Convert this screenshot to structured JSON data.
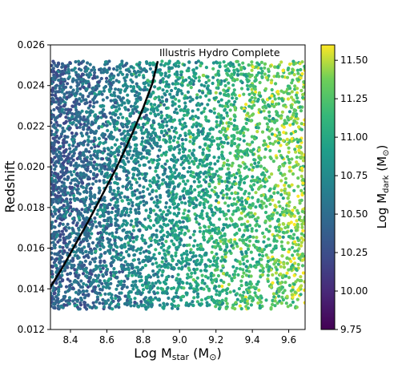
{
  "chart_data": {
    "type": "scatter",
    "xlabel": "Log M",
    "xlabel_sub": "star",
    "xlabel_unit": "(M",
    "xlabel_unit_sub": "⊙",
    "xlabel_close": ")",
    "ylabel": "Redshift",
    "xlim": [
      8.29,
      9.69
    ],
    "ylim": [
      0.012,
      0.026
    ],
    "xticks": [
      "8.4",
      "8.6",
      "8.8",
      "9.0",
      "9.2",
      "9.4",
      "9.6"
    ],
    "yticks": [
      "0.012",
      "0.014",
      "0.016",
      "0.018",
      "0.020",
      "0.022",
      "0.024",
      "0.026"
    ],
    "grid": false,
    "points_summary": {
      "count": 5200,
      "x_range": [
        8.29,
        9.69
      ],
      "z_range": [
        0.013,
        0.0252
      ],
      "color_range": [
        10.2,
        11.6
      ],
      "note_color_vs_x": "color value increases with Log Mstar"
    },
    "completeness_curve": {
      "label": "Illustris Hydro Complete",
      "x": [
        8.29,
        8.35,
        8.4,
        8.45,
        8.5,
        8.55,
        8.6,
        8.65,
        8.7,
        8.75,
        8.8,
        8.85,
        8.88
      ],
      "y": [
        0.0141,
        0.01495,
        0.01575,
        0.01655,
        0.01735,
        0.0182,
        0.01905,
        0.0199,
        0.02085,
        0.02185,
        0.0229,
        0.0241,
        0.0252
      ]
    },
    "colorbar": {
      "label": "Log M",
      "label_sub": "dark",
      "label_unit": "(M",
      "label_unit_sub": "⊙",
      "label_close": ")",
      "range": [
        9.75,
        11.6
      ],
      "ticks": [
        "9.75",
        "10.00",
        "10.25",
        "10.50",
        "10.75",
        "11.00",
        "11.25",
        "11.50"
      ],
      "colormap": "viridis"
    }
  }
}
